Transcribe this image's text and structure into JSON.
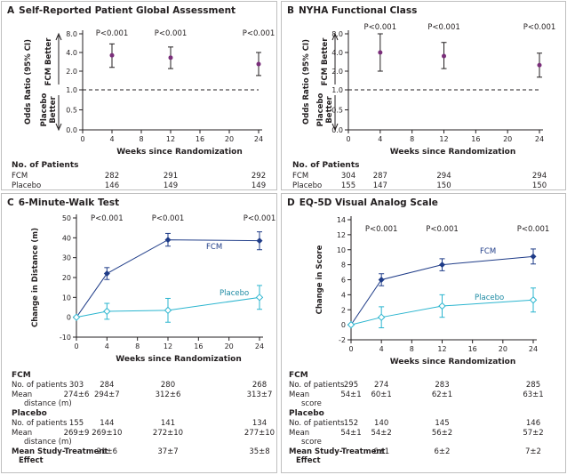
{
  "colors": {
    "fcm": "#1f3c88",
    "placebo": "#2bb5cf",
    "ab_point": "#7a2e7a",
    "text": "#231f20",
    "axis": "#231f20"
  },
  "chart_data": [
    {
      "id": "A",
      "type": "scatter",
      "letter": "A",
      "title": "Self-Reported Patient Global Assessment",
      "xlabel": "Weeks since Randomization",
      "ylabel": "Odds Ratio (95% CI)",
      "y_better_top": "FCM Better",
      "y_better_bottom": "Placebo Better",
      "x_ticks": [
        0,
        4,
        8,
        12,
        16,
        20,
        24
      ],
      "y_ticks": [
        0.0,
        0.5,
        1.0,
        2.0,
        4.0,
        8.0
      ],
      "y_tick_labels": [
        "0.0",
        "0.5",
        "1.0",
        "2.0",
        "4.0",
        "8.0"
      ],
      "reference_line": 1.0,
      "points": [
        {
          "x": 4,
          "y": 3.6,
          "lo": 2.3,
          "hi": 5.5,
          "p": "P<0.001"
        },
        {
          "x": 12,
          "y": 3.3,
          "lo": 2.2,
          "hi": 4.9,
          "p": "P<0.001"
        },
        {
          "x": 24,
          "y": 2.6,
          "lo": 1.7,
          "hi": 4.0,
          "p": "P<0.001"
        }
      ],
      "patients": {
        "header": "No. of Patients",
        "rows": [
          {
            "label": "FCM",
            "values": [
              "282",
              "291",
              "292"
            ]
          },
          {
            "label": "Placebo",
            "values": [
              "146",
              "149",
              "149"
            ]
          }
        ],
        "weeks": [
          4,
          12,
          24
        ]
      }
    },
    {
      "id": "B",
      "type": "scatter",
      "letter": "B",
      "title": "NYHA Functional Class",
      "xlabel": "Weeks since Randomization",
      "ylabel": "Odds Ratio (95% CI)",
      "y_better_top": "FCM Better",
      "y_better_bottom": "Placebo Better",
      "x_ticks": [
        0,
        4,
        8,
        12,
        16,
        20,
        24
      ],
      "y_ticks": [
        0.0,
        0.5,
        1.0,
        2.0,
        4.0,
        8.0
      ],
      "y_tick_labels": [
        "0.0",
        "0.5",
        "1.0",
        "2.0",
        "4.0",
        "8.0"
      ],
      "reference_line": 1.0,
      "points": [
        {
          "x": 4,
          "y": 4.0,
          "lo": 2.0,
          "hi": 8.0,
          "p": "P<0.001"
        },
        {
          "x": 12,
          "y": 3.5,
          "lo": 2.2,
          "hi": 5.8,
          "p": "P<0.001"
        },
        {
          "x": 24,
          "y": 2.5,
          "lo": 1.6,
          "hi": 3.9,
          "p": "P<0.001"
        }
      ],
      "patients": {
        "header": "No. of Patients",
        "rows": [
          {
            "label": "FCM",
            "values": [
              "304",
              "287",
              "294",
              "294"
            ]
          },
          {
            "label": "Placebo",
            "values": [
              "155",
              "147",
              "150",
              "150"
            ]
          }
        ],
        "weeks": [
          0,
          4,
          12,
          24
        ]
      }
    },
    {
      "id": "C",
      "type": "line",
      "letter": "C",
      "title": "6-Minute-Walk Test",
      "xlabel": "Weeks since Randomization",
      "ylabel": "Change in Distance (m)",
      "x_ticks": [
        0,
        4,
        8,
        12,
        16,
        20,
        24
      ],
      "y_ticks": [
        -10,
        0,
        10,
        20,
        30,
        40,
        50
      ],
      "ylim": [
        -10,
        50
      ],
      "p_values": [
        {
          "x": 4,
          "p": "P<0.001"
        },
        {
          "x": 12,
          "p": "P<0.001"
        },
        {
          "x": 24,
          "p": "P<0.001"
        }
      ],
      "series": [
        {
          "name": "FCM",
          "x": [
            0,
            4,
            12,
            24
          ],
          "values": [
            0,
            22,
            39,
            38.5
          ],
          "err": [
            0,
            3,
            3.2,
            4.5
          ]
        },
        {
          "name": "Placebo",
          "x": [
            0,
            4,
            12,
            24
          ],
          "values": [
            0,
            3,
            3.5,
            10
          ],
          "err": [
            0,
            4,
            6,
            6
          ]
        }
      ],
      "table": {
        "weeks": [
          0,
          4,
          12,
          24
        ],
        "rows": [
          {
            "label": "FCM",
            "type": "header"
          },
          {
            "label": "No. of patients",
            "values": [
              "303",
              "284",
              "280",
              "268"
            ]
          },
          {
            "label": "Mean",
            "label2": "distance (m)",
            "values": [
              "274±6",
              "294±7",
              "312±6",
              "313±7"
            ]
          },
          {
            "label": "Placebo",
            "type": "header"
          },
          {
            "label": "No. of patients",
            "values": [
              "155",
              "144",
              "141",
              "134"
            ]
          },
          {
            "label": "Mean",
            "label2": "distance (m)",
            "values": [
              "269±9",
              "269±10",
              "272±10",
              "277±10"
            ]
          },
          {
            "label": "Mean Study-Treatment",
            "label2": "Effect",
            "type": "effect",
            "values": [
              "",
              "21±6",
              "37±7",
              "35±8"
            ]
          }
        ]
      }
    },
    {
      "id": "D",
      "type": "line",
      "letter": "D",
      "title": "EQ-5D Visual Analog Scale",
      "xlabel": "Weeks since Randomization",
      "ylabel": "Change in Score",
      "x_ticks": [
        0,
        4,
        8,
        12,
        16,
        20,
        24
      ],
      "y_ticks": [
        -2,
        0,
        2,
        4,
        6,
        8,
        10,
        12,
        14
      ],
      "ylim": [
        -2,
        14
      ],
      "p_values": [
        {
          "x": 4,
          "p": "P<0.001"
        },
        {
          "x": 12,
          "p": "P<0.001"
        },
        {
          "x": 24,
          "p": "P<0.001"
        }
      ],
      "series": [
        {
          "name": "FCM",
          "x": [
            0,
            4,
            12,
            24
          ],
          "values": [
            0,
            6,
            8,
            9.1
          ],
          "err": [
            0,
            0.8,
            0.8,
            1
          ]
        },
        {
          "name": "Placebo",
          "x": [
            0,
            4,
            12,
            24
          ],
          "values": [
            0,
            1,
            2.5,
            3.3
          ],
          "err": [
            0,
            1.4,
            1.5,
            1.6
          ]
        }
      ],
      "table": {
        "weeks": [
          0,
          4,
          12,
          24
        ],
        "rows": [
          {
            "label": "FCM",
            "type": "header"
          },
          {
            "label": "No. of patients",
            "values": [
              "295",
              "274",
              "283",
              "285"
            ]
          },
          {
            "label": "Mean",
            "label2": "score",
            "values": [
              "54±1",
              "60±1",
              "62±1",
              "63±1"
            ]
          },
          {
            "label": "Placebo",
            "type": "header"
          },
          {
            "label": "No. of patients",
            "values": [
              "152",
              "140",
              "145",
              "146"
            ]
          },
          {
            "label": "Mean",
            "label2": "score",
            "values": [
              "54±1",
              "54±2",
              "56±2",
              "57±2"
            ]
          },
          {
            "label": "Mean Study-Treatment",
            "label2": "Effect",
            "type": "effect",
            "values": [
              "",
              "6±1",
              "6±2",
              "7±2"
            ]
          }
        ]
      }
    }
  ]
}
